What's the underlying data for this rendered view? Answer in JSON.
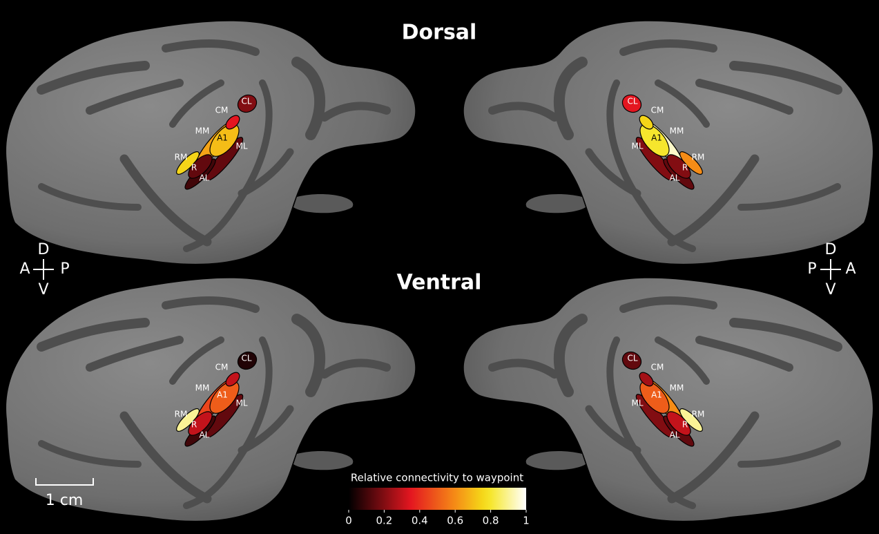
{
  "rows": [
    {
      "title": "Dorsal",
      "hemispheres": [
        {
          "regions": [
            {
              "label": "ML",
              "value": 0.15
            },
            {
              "label": "AL",
              "value": 0.1
            },
            {
              "label": "MM",
              "value": 0.65
            },
            {
              "label": "RM",
              "value": 0.75
            },
            {
              "label": "R",
              "value": 0.15
            },
            {
              "label": "A1",
              "value": 0.7
            },
            {
              "label": "CM",
              "value": 0.35
            },
            {
              "label": "CL",
              "value": 0.2
            }
          ]
        },
        {
          "regions": [
            {
              "label": "ML",
              "value": 0.2
            },
            {
              "label": "AL",
              "value": 0.15
            },
            {
              "label": "MM",
              "value": 0.95
            },
            {
              "label": "RM",
              "value": 0.6
            },
            {
              "label": "R",
              "value": 0.2
            },
            {
              "label": "A1",
              "value": 0.8
            },
            {
              "label": "CM",
              "value": 0.75
            },
            {
              "label": "CL",
              "value": 0.35
            }
          ]
        }
      ]
    },
    {
      "title": "Ventral",
      "hemispheres": [
        {
          "regions": [
            {
              "label": "ML",
              "value": 0.15
            },
            {
              "label": "AL",
              "value": 0.1
            },
            {
              "label": "MM",
              "value": 0.45
            },
            {
              "label": "RM",
              "value": 0.9
            },
            {
              "label": "R",
              "value": 0.3
            },
            {
              "label": "A1",
              "value": 0.5
            },
            {
              "label": "CM",
              "value": 0.3
            },
            {
              "label": "CL",
              "value": 0.05
            }
          ]
        },
        {
          "regions": [
            {
              "label": "ML",
              "value": 0.2
            },
            {
              "label": "AL",
              "value": 0.15
            },
            {
              "label": "MM",
              "value": 0.6
            },
            {
              "label": "RM",
              "value": 0.9
            },
            {
              "label": "R",
              "value": 0.3
            },
            {
              "label": "A1",
              "value": 0.5
            },
            {
              "label": "CM",
              "value": 0.25
            },
            {
              "label": "CL",
              "value": 0.15
            }
          ]
        }
      ]
    }
  ],
  "orientation": [
    {
      "top": "D",
      "left": "A",
      "right": "P",
      "bottom": "V"
    },
    {
      "top": "D",
      "left": "P",
      "right": "A",
      "bottom": "V"
    }
  ],
  "scale_bar": "1 cm",
  "colorbar": {
    "title": "Relative connectivity to waypoint",
    "lim": [
      0,
      1
    ],
    "ticks": [
      0,
      0.2,
      0.4,
      0.6,
      0.8,
      1
    ]
  }
}
